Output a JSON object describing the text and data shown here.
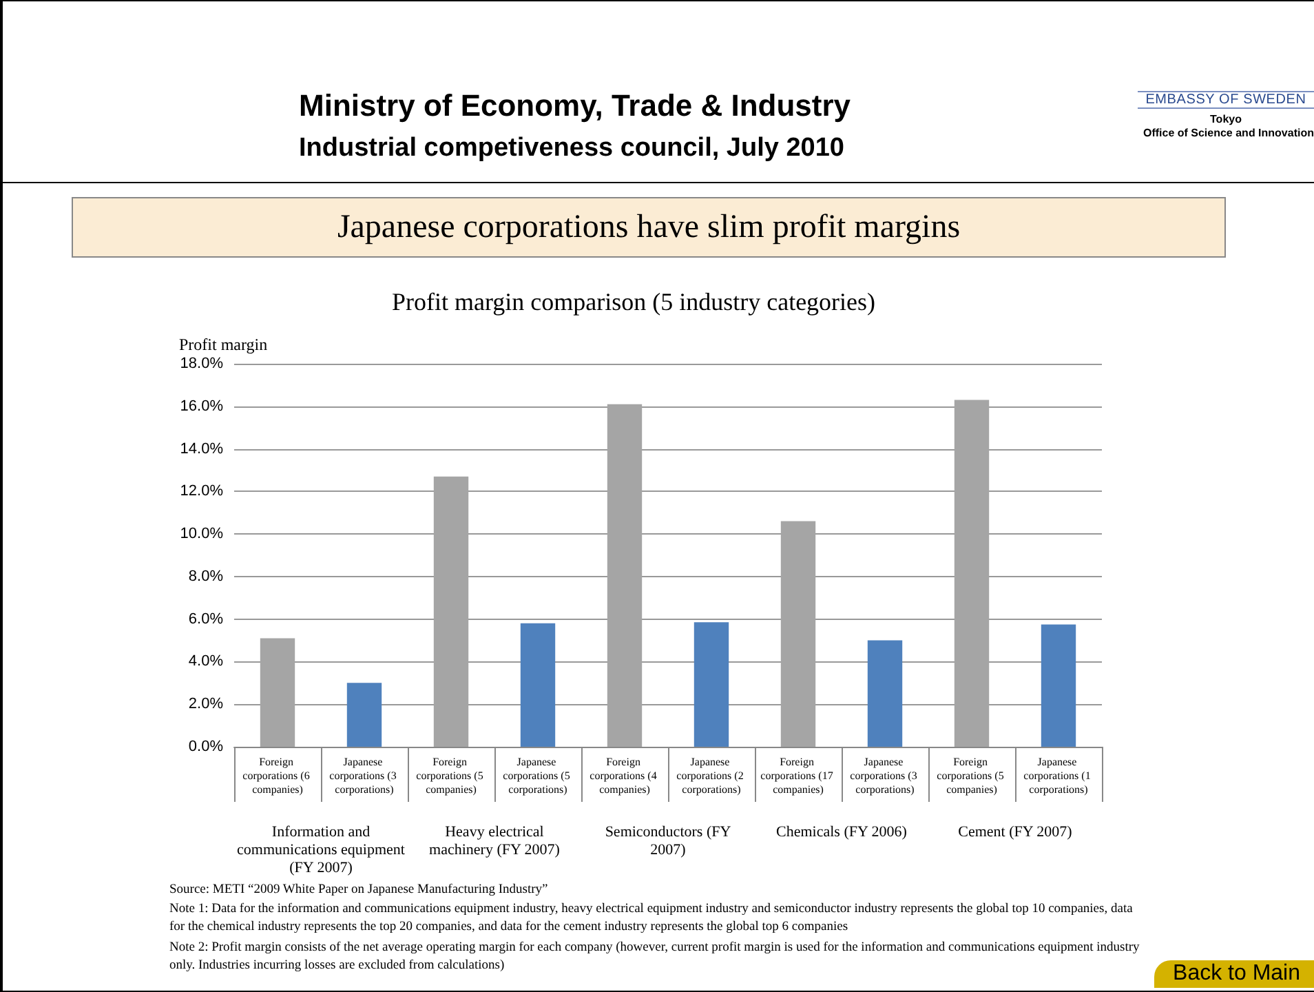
{
  "chart_data": {
    "type": "bar",
    "title": "Profit margin comparison (5 industry categories)",
    "subtitle": "Japanese corporations have slim profit margins",
    "ylabel": "Profit margin",
    "categories": [
      "Foreign corporations (6 companies)",
      "Japanese corporations (3 corporations)",
      "Foreign corporations (5 companies)",
      "Japanese corporations (5 corporations)",
      "Foreign corporations (4 companies)",
      "Japanese corporations (2 corporations)",
      "Foreign corporations (17 companies)",
      "Japanese corporations (3 corporations)",
      "Foreign corporations (5 companies)",
      "Japanese corporations (1 corporations)"
    ],
    "values": [
      5.1,
      3.0,
      12.7,
      5.8,
      16.1,
      5.85,
      10.6,
      5.0,
      16.3,
      5.75
    ],
    "colors": [
      "#a5a5a5",
      "#4f81bd",
      "#a5a5a5",
      "#4f81bd",
      "#a5a5a5",
      "#4f81bd",
      "#a5a5a5",
      "#4f81bd",
      "#a5a5a5",
      "#4f81bd"
    ],
    "ylim": [
      0,
      18
    ],
    "yticks": [
      {
        "value": 0,
        "label": "0.0%"
      },
      {
        "value": 2,
        "label": "2.0%"
      },
      {
        "value": 4,
        "label": "4.0%"
      },
      {
        "value": 6,
        "label": "6.0%"
      },
      {
        "value": 8,
        "label": "8.0%"
      },
      {
        "value": 10,
        "label": "10.0%"
      },
      {
        "value": 12,
        "label": "12.0%"
      },
      {
        "value": 14,
        "label": "14.0%"
      },
      {
        "value": 16,
        "label": "16.0%"
      },
      {
        "value": 18,
        "label": "18.0%"
      }
    ],
    "grid": "y",
    "annotations": [
      "Ministry of Economy, Trade & Industry",
      "Industrial competiveness council, July 2010",
      "EMBASSY OF SWEDEN",
      "Tokyo",
      "Office of Science and Innovation",
      "Information and communications equipment (FY 2007)",
      "Heavy electrical machinery (FY 2007)",
      "Semiconductors (FY 2007)",
      "Chemicals (FY 2006)",
      "Cement (FY 2007)",
      "Source: METI “2009 White Paper on Japanese Manufacturing Industry”",
      "Note 1: Data for the information and communications equipment industry, heavy electrical equipment industry and semiconductor industry represents the global top 10 companies, data for the chemical industry represents the top 20 companies, and data for the cement industry represents the global top 6 companies",
      "Note 2: Profit margin consists of the net average operating margin for each company (however, current profit margin is used for the information and communications equipment industry only. Industries incurring losses are excluded from calculations)",
      "Back to Main"
    ]
  }
}
